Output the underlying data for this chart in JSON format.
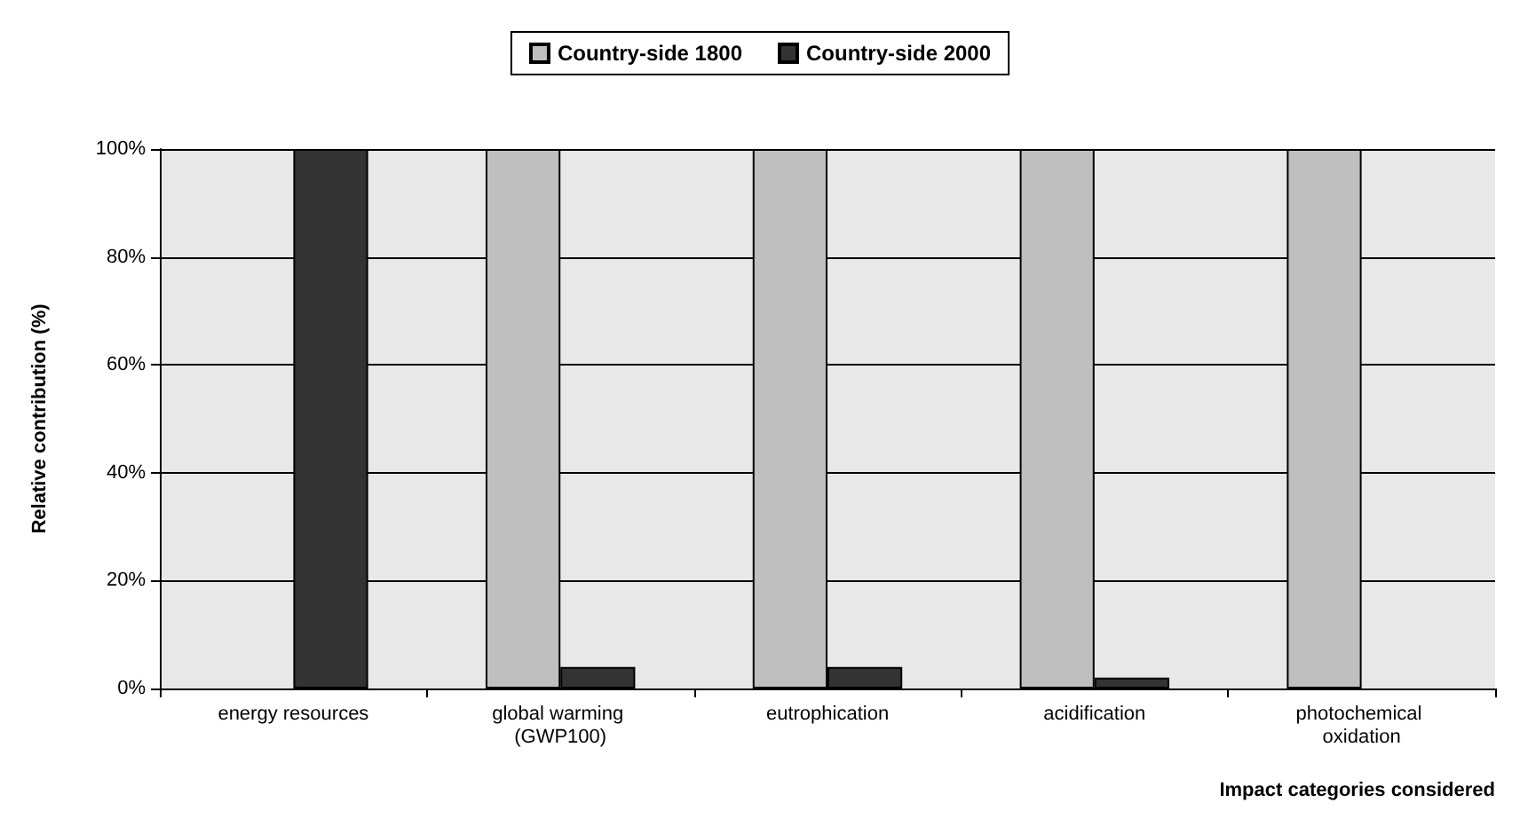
{
  "chart_data": {
    "type": "bar",
    "xlabel": "Impact categories considered",
    "ylabel": "Relative contribution (%)",
    "categories": [
      "energy resources",
      "global warming (GWP100)",
      "eutrophication",
      "acidification",
      "photochemical oxidation"
    ],
    "series": [
      {
        "name": "Country-side 1800",
        "color": "#bfbfbf",
        "values": [
          0,
          100,
          100,
          100,
          100
        ]
      },
      {
        "name": "Country-side 2000",
        "color": "#333333",
        "values": [
          100,
          4,
          4,
          2,
          0
        ]
      }
    ],
    "ylim": [
      0,
      100
    ],
    "yticks": [
      {
        "value": 0,
        "label": "0%"
      },
      {
        "value": 20,
        "label": "20%"
      },
      {
        "value": 40,
        "label": "40%"
      },
      {
        "value": 60,
        "label": "60%"
      },
      {
        "value": 80,
        "label": "80%"
      },
      {
        "value": 100,
        "label": "100%"
      }
    ],
    "grid": "y",
    "legend": "top"
  }
}
